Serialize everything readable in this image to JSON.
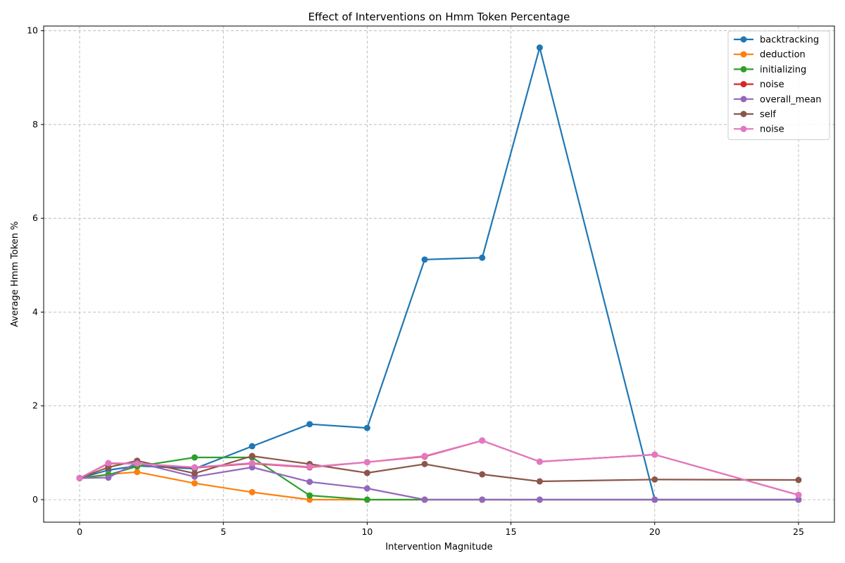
{
  "chart_data": {
    "type": "line",
    "title": "Effect of Interventions on Hmm Token Percentage",
    "xlabel": "Intervention Magnitude",
    "ylabel": "Average Hmm Token %",
    "xlim": [
      -1.25,
      26.25
    ],
    "ylim": [
      -0.48,
      10.1
    ],
    "xticks": [
      0,
      5,
      10,
      15,
      20,
      25
    ],
    "yticks": [
      0,
      2,
      4,
      6,
      8,
      10
    ],
    "grid": true,
    "legend_position": "top-right",
    "x": [
      0,
      1,
      2,
      4,
      6,
      8,
      10,
      12,
      14,
      16,
      20,
      25
    ],
    "series": [
      {
        "name": "backtracking",
        "color": "#1f77b4",
        "values": [
          0.46,
          0.63,
          0.72,
          0.66,
          1.14,
          1.61,
          1.53,
          5.12,
          5.16,
          9.64,
          0.0,
          0.0
        ]
      },
      {
        "name": "deduction",
        "color": "#ff7f0e",
        "values": [
          0.46,
          0.54,
          0.59,
          0.35,
          0.16,
          0.0,
          0.0,
          0.0,
          0.0,
          0.0,
          0.0,
          0.0
        ]
      },
      {
        "name": "initializing",
        "color": "#2ca02c",
        "values": [
          0.46,
          0.53,
          0.71,
          0.9,
          0.9,
          0.09,
          0.0,
          0.0,
          0.0,
          0.0,
          0.0,
          0.0
        ]
      },
      {
        "name": "noise",
        "color": "#d62728",
        "values": [
          0.46,
          0.77,
          0.77,
          0.68,
          0.77,
          0.69,
          0.8,
          0.92,
          1.26,
          0.81,
          0.96,
          0.1
        ]
      },
      {
        "name": "overall_mean",
        "color": "#9467bd",
        "values": [
          0.46,
          0.47,
          0.79,
          0.49,
          0.69,
          0.38,
          0.24,
          0.0,
          0.0,
          0.0,
          0.0,
          0.0
        ]
      },
      {
        "name": "self",
        "color": "#8c564b",
        "values": [
          0.46,
          0.69,
          0.83,
          0.56,
          0.93,
          0.76,
          0.57,
          0.76,
          0.54,
          0.39,
          0.43,
          0.42
        ]
      },
      {
        "name": "noise",
        "color": "#e377c2",
        "values": [
          0.46,
          0.78,
          0.77,
          0.69,
          0.78,
          0.7,
          0.8,
          0.93,
          1.26,
          0.81,
          0.96,
          0.1
        ]
      }
    ]
  }
}
